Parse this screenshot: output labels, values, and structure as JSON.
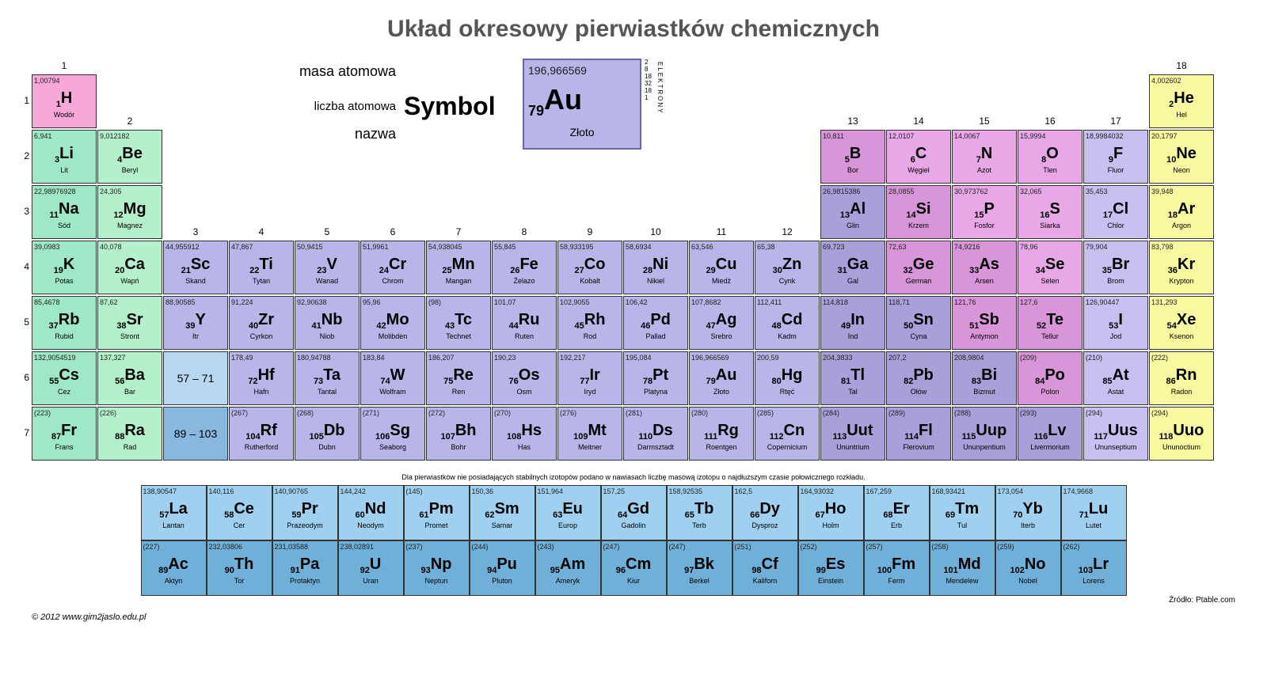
{
  "title": "Układ okresowy pierwiastków chemicznych",
  "colors": {
    "alkali": "#9ee8c5",
    "alkaline": "#b5f0cc",
    "transition": "#b8b5e8",
    "post": "#a8a0d8",
    "metalloid": "#d896d8",
    "nonmetal": "#e8a8e8",
    "halogen": "#c8c0f0",
    "noble": "#f8f8a0",
    "lanthanide": "#a0d0f0",
    "actinide": "#70b0d8",
    "hydrogen": "#f8a8d8",
    "range1": "#b8d8f0",
    "range2": "#88b8e0"
  },
  "legend": {
    "mass_label": "masa atomowa",
    "number_label": "liczba atomowa",
    "symbol_label": "Symbol",
    "name_label": "nazwa",
    "mass": "196,966569",
    "num": "79",
    "sym": "Au",
    "name": "Złoto",
    "shells_label": "ELEKTRONY",
    "shells": "2\n8\n18\n32\n18\n1"
  },
  "groups": [
    1,
    2,
    3,
    4,
    5,
    6,
    7,
    8,
    9,
    10,
    11,
    12,
    13,
    14,
    15,
    16,
    17,
    18
  ],
  "periods": [
    1,
    2,
    3,
    4,
    5,
    6,
    7
  ],
  "note": "Dla pierwiastków nie posiadających stabilnych izotopów podano w nawiasach liczbę masową izotopu o najdłuższym czasie połowicznego rozkładu.",
  "footer": "© 2012  www.gim2jaslo.edu.pl",
  "source": "Źródło: Ptable.com",
  "range1": "57 – 71",
  "range2": "89 – 103",
  "elements": [
    {
      "n": 1,
      "s": "H",
      "m": "1,00794",
      "nm": "Wodór",
      "g": 1,
      "p": 1,
      "c": "hydrogen"
    },
    {
      "n": 2,
      "s": "He",
      "m": "4,002602",
      "nm": "Hel",
      "g": 18,
      "p": 1,
      "c": "noble"
    },
    {
      "n": 3,
      "s": "Li",
      "m": "6,941",
      "nm": "Lit",
      "g": 1,
      "p": 2,
      "c": "alkali"
    },
    {
      "n": 4,
      "s": "Be",
      "m": "9,012182",
      "nm": "Beryl",
      "g": 2,
      "p": 2,
      "c": "alkaline"
    },
    {
      "n": 5,
      "s": "B",
      "m": "10,811",
      "nm": "Bor",
      "g": 13,
      "p": 2,
      "c": "metalloid"
    },
    {
      "n": 6,
      "s": "C",
      "m": "12,0107",
      "nm": "Węgiel",
      "g": 14,
      "p": 2,
      "c": "nonmetal"
    },
    {
      "n": 7,
      "s": "N",
      "m": "14,0067",
      "nm": "Azot",
      "g": 15,
      "p": 2,
      "c": "nonmetal"
    },
    {
      "n": 8,
      "s": "O",
      "m": "15,9994",
      "nm": "Tlen",
      "g": 16,
      "p": 2,
      "c": "nonmetal"
    },
    {
      "n": 9,
      "s": "F",
      "m": "18,9984032",
      "nm": "Fluor",
      "g": 17,
      "p": 2,
      "c": "halogen"
    },
    {
      "n": 10,
      "s": "Ne",
      "m": "20,1797",
      "nm": "Neon",
      "g": 18,
      "p": 2,
      "c": "noble"
    },
    {
      "n": 11,
      "s": "Na",
      "m": "22,98976928",
      "nm": "Sód",
      "g": 1,
      "p": 3,
      "c": "alkali"
    },
    {
      "n": 12,
      "s": "Mg",
      "m": "24,305",
      "nm": "Magnez",
      "g": 2,
      "p": 3,
      "c": "alkaline"
    },
    {
      "n": 13,
      "s": "Al",
      "m": "26,9815386",
      "nm": "Glin",
      "g": 13,
      "p": 3,
      "c": "post"
    },
    {
      "n": 14,
      "s": "Si",
      "m": "28,0855",
      "nm": "Krzem",
      "g": 14,
      "p": 3,
      "c": "metalloid"
    },
    {
      "n": 15,
      "s": "P",
      "m": "30,973762",
      "nm": "Fosfor",
      "g": 15,
      "p": 3,
      "c": "nonmetal"
    },
    {
      "n": 16,
      "s": "S",
      "m": "32,065",
      "nm": "Siarka",
      "g": 16,
      "p": 3,
      "c": "nonmetal"
    },
    {
      "n": 17,
      "s": "Cl",
      "m": "35,453",
      "nm": "Chlor",
      "g": 17,
      "p": 3,
      "c": "halogen"
    },
    {
      "n": 18,
      "s": "Ar",
      "m": "39,948",
      "nm": "Argon",
      "g": 18,
      "p": 3,
      "c": "noble"
    },
    {
      "n": 19,
      "s": "K",
      "m": "39,0983",
      "nm": "Potas",
      "g": 1,
      "p": 4,
      "c": "alkali"
    },
    {
      "n": 20,
      "s": "Ca",
      "m": "40,078",
      "nm": "Wapń",
      "g": 2,
      "p": 4,
      "c": "alkaline"
    },
    {
      "n": 21,
      "s": "Sc",
      "m": "44,955912",
      "nm": "Skand",
      "g": 3,
      "p": 4,
      "c": "transition"
    },
    {
      "n": 22,
      "s": "Ti",
      "m": "47,867",
      "nm": "Tytan",
      "g": 4,
      "p": 4,
      "c": "transition"
    },
    {
      "n": 23,
      "s": "V",
      "m": "50,9415",
      "nm": "Wanad",
      "g": 5,
      "p": 4,
      "c": "transition"
    },
    {
      "n": 24,
      "s": "Cr",
      "m": "51,9961",
      "nm": "Chrom",
      "g": 6,
      "p": 4,
      "c": "transition"
    },
    {
      "n": 25,
      "s": "Mn",
      "m": "54,938045",
      "nm": "Mangan",
      "g": 7,
      "p": 4,
      "c": "transition"
    },
    {
      "n": 26,
      "s": "Fe",
      "m": "55,845",
      "nm": "Żelazo",
      "g": 8,
      "p": 4,
      "c": "transition"
    },
    {
      "n": 27,
      "s": "Co",
      "m": "58,933195",
      "nm": "Kobalt",
      "g": 9,
      "p": 4,
      "c": "transition"
    },
    {
      "n": 28,
      "s": "Ni",
      "m": "58,6934",
      "nm": "Nikiel",
      "g": 10,
      "p": 4,
      "c": "transition"
    },
    {
      "n": 29,
      "s": "Cu",
      "m": "63,546",
      "nm": "Miedź",
      "g": 11,
      "p": 4,
      "c": "transition"
    },
    {
      "n": 30,
      "s": "Zn",
      "m": "65,38",
      "nm": "Cynk",
      "g": 12,
      "p": 4,
      "c": "transition"
    },
    {
      "n": 31,
      "s": "Ga",
      "m": "69,723",
      "nm": "Gal",
      "g": 13,
      "p": 4,
      "c": "post"
    },
    {
      "n": 32,
      "s": "Ge",
      "m": "72,63",
      "nm": "German",
      "g": 14,
      "p": 4,
      "c": "metalloid"
    },
    {
      "n": 33,
      "s": "As",
      "m": "74,9216",
      "nm": "Arsen",
      "g": 15,
      "p": 4,
      "c": "metalloid"
    },
    {
      "n": 34,
      "s": "Se",
      "m": "78,96",
      "nm": "Selen",
      "g": 16,
      "p": 4,
      "c": "nonmetal"
    },
    {
      "n": 35,
      "s": "Br",
      "m": "79,904",
      "nm": "Brom",
      "g": 17,
      "p": 4,
      "c": "halogen"
    },
    {
      "n": 36,
      "s": "Kr",
      "m": "83,798",
      "nm": "Krypton",
      "g": 18,
      "p": 4,
      "c": "noble"
    },
    {
      "n": 37,
      "s": "Rb",
      "m": "85,4678",
      "nm": "Rubid",
      "g": 1,
      "p": 5,
      "c": "alkali"
    },
    {
      "n": 38,
      "s": "Sr",
      "m": "87,62",
      "nm": "Stront",
      "g": 2,
      "p": 5,
      "c": "alkaline"
    },
    {
      "n": 39,
      "s": "Y",
      "m": "88,90585",
      "nm": "Itr",
      "g": 3,
      "p": 5,
      "c": "transition"
    },
    {
      "n": 40,
      "s": "Zr",
      "m": "91,224",
      "nm": "Cyrkon",
      "g": 4,
      "p": 5,
      "c": "transition"
    },
    {
      "n": 41,
      "s": "Nb",
      "m": "92,90638",
      "nm": "Niob",
      "g": 5,
      "p": 5,
      "c": "transition"
    },
    {
      "n": 42,
      "s": "Mo",
      "m": "95,96",
      "nm": "Molibden",
      "g": 6,
      "p": 5,
      "c": "transition"
    },
    {
      "n": 43,
      "s": "Tc",
      "m": "(98)",
      "nm": "Technet",
      "g": 7,
      "p": 5,
      "c": "transition"
    },
    {
      "n": 44,
      "s": "Ru",
      "m": "101,07",
      "nm": "Ruten",
      "g": 8,
      "p": 5,
      "c": "transition"
    },
    {
      "n": 45,
      "s": "Rh",
      "m": "102,9055",
      "nm": "Rod",
      "g": 9,
      "p": 5,
      "c": "transition"
    },
    {
      "n": 46,
      "s": "Pd",
      "m": "106,42",
      "nm": "Pallad",
      "g": 10,
      "p": 5,
      "c": "transition"
    },
    {
      "n": 47,
      "s": "Ag",
      "m": "107,8682",
      "nm": "Srebro",
      "g": 11,
      "p": 5,
      "c": "transition"
    },
    {
      "n": 48,
      "s": "Cd",
      "m": "112,411",
      "nm": "Kadm",
      "g": 12,
      "p": 5,
      "c": "transition"
    },
    {
      "n": 49,
      "s": "In",
      "m": "114,818",
      "nm": "Ind",
      "g": 13,
      "p": 5,
      "c": "post"
    },
    {
      "n": 50,
      "s": "Sn",
      "m": "118,71",
      "nm": "Cyna",
      "g": 14,
      "p": 5,
      "c": "post"
    },
    {
      "n": 51,
      "s": "Sb",
      "m": "121,76",
      "nm": "Antymon",
      "g": 15,
      "p": 5,
      "c": "metalloid"
    },
    {
      "n": 52,
      "s": "Te",
      "m": "127,6",
      "nm": "Tellur",
      "g": 16,
      "p": 5,
      "c": "metalloid"
    },
    {
      "n": 53,
      "s": "I",
      "m": "126,90447",
      "nm": "Jod",
      "g": 17,
      "p": 5,
      "c": "halogen"
    },
    {
      "n": 54,
      "s": "Xe",
      "m": "131,293",
      "nm": "Ksenon",
      "g": 18,
      "p": 5,
      "c": "noble"
    },
    {
      "n": 55,
      "s": "Cs",
      "m": "132,9054519",
      "nm": "Cez",
      "g": 1,
      "p": 6,
      "c": "alkali"
    },
    {
      "n": 56,
      "s": "Ba",
      "m": "137,327",
      "nm": "Bar",
      "g": 2,
      "p": 6,
      "c": "alkaline"
    },
    {
      "n": 72,
      "s": "Hf",
      "m": "178,49",
      "nm": "Hafn",
      "g": 4,
      "p": 6,
      "c": "transition"
    },
    {
      "n": 73,
      "s": "Ta",
      "m": "180,94788",
      "nm": "Tantal",
      "g": 5,
      "p": 6,
      "c": "transition"
    },
    {
      "n": 74,
      "s": "W",
      "m": "183,84",
      "nm": "Wolfram",
      "g": 6,
      "p": 6,
      "c": "transition"
    },
    {
      "n": 75,
      "s": "Re",
      "m": "186,207",
      "nm": "Ren",
      "g": 7,
      "p": 6,
      "c": "transition"
    },
    {
      "n": 76,
      "s": "Os",
      "m": "190,23",
      "nm": "Osm",
      "g": 8,
      "p": 6,
      "c": "transition"
    },
    {
      "n": 77,
      "s": "Ir",
      "m": "192,217",
      "nm": "Iryd",
      "g": 9,
      "p": 6,
      "c": "transition"
    },
    {
      "n": 78,
      "s": "Pt",
      "m": "195,084",
      "nm": "Platyna",
      "g": 10,
      "p": 6,
      "c": "transition"
    },
    {
      "n": 79,
      "s": "Au",
      "m": "196,966569",
      "nm": "Złoto",
      "g": 11,
      "p": 6,
      "c": "transition"
    },
    {
      "n": 80,
      "s": "Hg",
      "m": "200,59",
      "nm": "Rtęć",
      "g": 12,
      "p": 6,
      "c": "transition"
    },
    {
      "n": 81,
      "s": "Tl",
      "m": "204,3833",
      "nm": "Tal",
      "g": 13,
      "p": 6,
      "c": "post"
    },
    {
      "n": 82,
      "s": "Pb",
      "m": "207,2",
      "nm": "Ołów",
      "g": 14,
      "p": 6,
      "c": "post"
    },
    {
      "n": 83,
      "s": "Bi",
      "m": "208,9804",
      "nm": "Bizmut",
      "g": 15,
      "p": 6,
      "c": "post"
    },
    {
      "n": 84,
      "s": "Po",
      "m": "(209)",
      "nm": "Polon",
      "g": 16,
      "p": 6,
      "c": "metalloid"
    },
    {
      "n": 85,
      "s": "At",
      "m": "(210)",
      "nm": "Astat",
      "g": 17,
      "p": 6,
      "c": "halogen"
    },
    {
      "n": 86,
      "s": "Rn",
      "m": "(222)",
      "nm": "Radon",
      "g": 18,
      "p": 6,
      "c": "noble"
    },
    {
      "n": 87,
      "s": "Fr",
      "m": "(223)",
      "nm": "Frans",
      "g": 1,
      "p": 7,
      "c": "alkali"
    },
    {
      "n": 88,
      "s": "Ra",
      "m": "(226)",
      "nm": "Rad",
      "g": 2,
      "p": 7,
      "c": "alkaline"
    },
    {
      "n": 104,
      "s": "Rf",
      "m": "(267)",
      "nm": "Rutherford",
      "g": 4,
      "p": 7,
      "c": "transition"
    },
    {
      "n": 105,
      "s": "Db",
      "m": "(268)",
      "nm": "Dubn",
      "g": 5,
      "p": 7,
      "c": "transition"
    },
    {
      "n": 106,
      "s": "Sg",
      "m": "(271)",
      "nm": "Seaborg",
      "g": 6,
      "p": 7,
      "c": "transition"
    },
    {
      "n": 107,
      "s": "Bh",
      "m": "(272)",
      "nm": "Bohr",
      "g": 7,
      "p": 7,
      "c": "transition"
    },
    {
      "n": 108,
      "s": "Hs",
      "m": "(270)",
      "nm": "Has",
      "g": 8,
      "p": 7,
      "c": "transition"
    },
    {
      "n": 109,
      "s": "Mt",
      "m": "(276)",
      "nm": "Meitner",
      "g": 9,
      "p": 7,
      "c": "transition"
    },
    {
      "n": 110,
      "s": "Ds",
      "m": "(281)",
      "nm": "Darmsztadt",
      "g": 10,
      "p": 7,
      "c": "transition"
    },
    {
      "n": 111,
      "s": "Rg",
      "m": "(280)",
      "nm": "Roentgen",
      "g": 11,
      "p": 7,
      "c": "transition"
    },
    {
      "n": 112,
      "s": "Cn",
      "m": "(285)",
      "nm": "Copernicium",
      "g": 12,
      "p": 7,
      "c": "transition"
    },
    {
      "n": 113,
      "s": "Uut",
      "m": "(284)",
      "nm": "Ununtrium",
      "g": 13,
      "p": 7,
      "c": "post"
    },
    {
      "n": 114,
      "s": "Fl",
      "m": "(289)",
      "nm": "Flerovium",
      "g": 14,
      "p": 7,
      "c": "post"
    },
    {
      "n": 115,
      "s": "Uup",
      "m": "(288)",
      "nm": "Ununpentium",
      "g": 15,
      "p": 7,
      "c": "post"
    },
    {
      "n": 116,
      "s": "Lv",
      "m": "(293)",
      "nm": "Livermorium",
      "g": 16,
      "p": 7,
      "c": "post"
    },
    {
      "n": 117,
      "s": "Uus",
      "m": "(294)",
      "nm": "Ununseptium",
      "g": 17,
      "p": 7,
      "c": "halogen"
    },
    {
      "n": 118,
      "s": "Uuo",
      "m": "(294)",
      "nm": "Ununoctium",
      "g": 18,
      "p": 7,
      "c": "noble"
    }
  ],
  "lanthanides": [
    {
      "n": 57,
      "s": "La",
      "m": "138,90547",
      "nm": "Lantan"
    },
    {
      "n": 58,
      "s": "Ce",
      "m": "140,116",
      "nm": "Cer"
    },
    {
      "n": 59,
      "s": "Pr",
      "m": "140,90765",
      "nm": "Prazeodym"
    },
    {
      "n": 60,
      "s": "Nd",
      "m": "144,242",
      "nm": "Neodym"
    },
    {
      "n": 61,
      "s": "Pm",
      "m": "(145)",
      "nm": "Promet"
    },
    {
      "n": 62,
      "s": "Sm",
      "m": "150,36",
      "nm": "Samar"
    },
    {
      "n": 63,
      "s": "Eu",
      "m": "151,964",
      "nm": "Europ"
    },
    {
      "n": 64,
      "s": "Gd",
      "m": "157,25",
      "nm": "Gadolin"
    },
    {
      "n": 65,
      "s": "Tb",
      "m": "158,92535",
      "nm": "Terb"
    },
    {
      "n": 66,
      "s": "Dy",
      "m": "162,5",
      "nm": "Dysproz"
    },
    {
      "n": 67,
      "s": "Ho",
      "m": "164,93032",
      "nm": "Holm"
    },
    {
      "n": 68,
      "s": "Er",
      "m": "167,259",
      "nm": "Erb"
    },
    {
      "n": 69,
      "s": "Tm",
      "m": "168,93421",
      "nm": "Tul"
    },
    {
      "n": 70,
      "s": "Yb",
      "m": "173,054",
      "nm": "Iterb"
    },
    {
      "n": 71,
      "s": "Lu",
      "m": "174,9668",
      "nm": "Lutet"
    }
  ],
  "actinides": [
    {
      "n": 89,
      "s": "Ac",
      "m": "(227)",
      "nm": "Aktyn"
    },
    {
      "n": 90,
      "s": "Th",
      "m": "232,03806",
      "nm": "Tor"
    },
    {
      "n": 91,
      "s": "Pa",
      "m": "231,03588",
      "nm": "Protaktyn"
    },
    {
      "n": 92,
      "s": "U",
      "m": "238,02891",
      "nm": "Uran"
    },
    {
      "n": 93,
      "s": "Np",
      "m": "(237)",
      "nm": "Neptun"
    },
    {
      "n": 94,
      "s": "Pu",
      "m": "(244)",
      "nm": "Pluton"
    },
    {
      "n": 95,
      "s": "Am",
      "m": "(243)",
      "nm": "Ameryk"
    },
    {
      "n": 96,
      "s": "Cm",
      "m": "(247)",
      "nm": "Kiur"
    },
    {
      "n": 97,
      "s": "Bk",
      "m": "(247)",
      "nm": "Berkel"
    },
    {
      "n": 98,
      "s": "Cf",
      "m": "(251)",
      "nm": "Kaliforn"
    },
    {
      "n": 99,
      "s": "Es",
      "m": "(252)",
      "nm": "Einstein"
    },
    {
      "n": 100,
      "s": "Fm",
      "m": "(257)",
      "nm": "Ferm"
    },
    {
      "n": 101,
      "s": "Md",
      "m": "(258)",
      "nm": "Mendelew"
    },
    {
      "n": 102,
      "s": "No",
      "m": "(259)",
      "nm": "Nobel"
    },
    {
      "n": 103,
      "s": "Lr",
      "m": "(262)",
      "nm": "Lorens"
    }
  ]
}
